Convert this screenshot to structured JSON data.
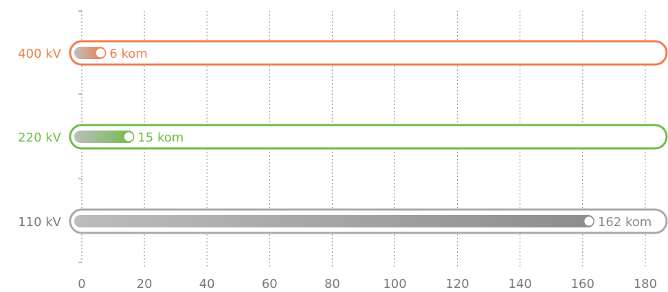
{
  "chart_data": {
    "type": "bar",
    "orientation": "horizontal",
    "title": "",
    "xlabel": "",
    "ylabel": "",
    "xlim": [
      0,
      190
    ],
    "x_ticks": [
      "0",
      "20",
      "40",
      "60",
      "80",
      "100",
      "120",
      "140",
      "160",
      "180"
    ],
    "grid": true,
    "categories": [
      "400 kV",
      "220 kV",
      "110 kV"
    ],
    "values": [
      6,
      15,
      162
    ],
    "value_labels": [
      "6 kom",
      "15 kom",
      "162 kom"
    ],
    "colors": [
      "#ee7d4a",
      "#6cbd45",
      "#a8a8aa"
    ]
  }
}
